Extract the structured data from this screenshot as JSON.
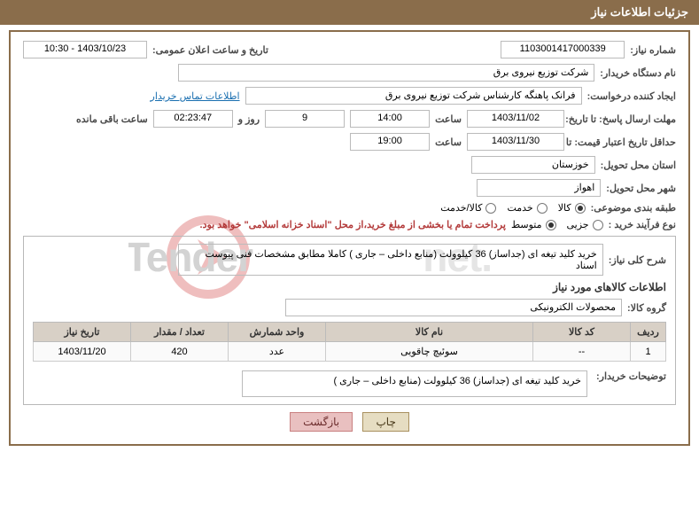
{
  "header": {
    "title": "جزئیات اطلاعات نیاز"
  },
  "need_no": {
    "label": "شماره نیاز:",
    "value": "1103001417000339"
  },
  "announce": {
    "label": "تاریخ و ساعت اعلان عمومی:",
    "value": "1403/10/23 - 10:30"
  },
  "org": {
    "label": "نام دستگاه خریدار:",
    "value": "شرکت توزیع نیروی برق"
  },
  "requester": {
    "label": "ایجاد کننده درخواست:",
    "value": "فرانک  پاهنگه کارشناس  شرکت توزیع نیروی برق"
  },
  "contact_link": "اطلاعات تماس خریدار",
  "deadline": {
    "label": "مهلت ارسال پاسخ: تا تاریخ:",
    "date": "1403/11/02",
    "time_label": "ساعت",
    "time": "14:00",
    "days": "9",
    "days_and": "روز و",
    "countdown": "02:23:47",
    "remain": "ساعت باقی مانده"
  },
  "validity": {
    "label": "حداقل تاریخ اعتبار قیمت: تا تاریخ:",
    "date": "1403/11/30",
    "time_label": "ساعت",
    "time": "19:00"
  },
  "province": {
    "label": "استان محل تحویل:",
    "value": "خوزستان"
  },
  "city": {
    "label": "شهر محل تحویل:",
    "value": "اهواز"
  },
  "category": {
    "label": "طبقه بندی موضوعی:",
    "opts": [
      "کالا",
      "خدمت",
      "کالا/خدمت"
    ],
    "selected": 0
  },
  "process": {
    "label": "نوع فرآیند خرید :",
    "opts": [
      "جزیی",
      "متوسط"
    ],
    "selected": 1,
    "note": "پرداخت تمام یا بخشی از مبلغ خرید،از محل \"اسناد خزانه اسلامی\" خواهد بود."
  },
  "general_desc": {
    "label": "شرح کلی نیاز:",
    "value": "خرید کلید تیغه ای (جداساز) 36 کیلوولت (منابع داخلی – جاری )     کاملا مطابق مشخصات فنی پیوست اسناد"
  },
  "items_section_title": "اطلاعات کالاهای مورد نیاز",
  "group": {
    "label": "گروه کالا:",
    "value": "محصولات الکترونیکی"
  },
  "table": {
    "headers": [
      "ردیف",
      "کد کالا",
      "نام کالا",
      "واحد شمارش",
      "تعداد / مقدار",
      "تاریخ نیاز"
    ],
    "rows": [
      [
        "1",
        "--",
        "سوئیچ چاقویی",
        "عدد",
        "420",
        "1403/11/20"
      ]
    ]
  },
  "buyer_note": {
    "label": "توضیحات خریدار:",
    "value": "خرید کلید تیغه ای (جداساز) 36 کیلوولت (منابع داخلی – جاری )"
  },
  "buttons": {
    "print": "چاپ",
    "back": "بازگشت"
  },
  "watermark": {
    "text": "IranTender.net",
    "circle": "#cf3a3a",
    "arrow": "#ffffff",
    "textfill": "#b0b0b0"
  }
}
